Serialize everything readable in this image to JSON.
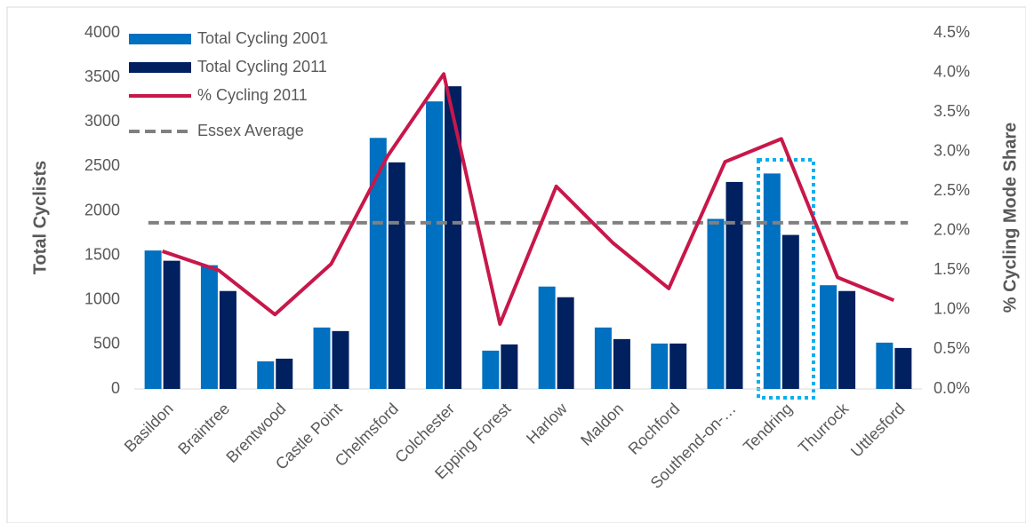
{
  "chart_data": {
    "type": "bar",
    "categories": [
      "Basildon",
      "Braintree",
      "Brentwood",
      "Castle Point",
      "Chelmsford",
      "Colchester",
      "Epping Forest",
      "Harlow",
      "Maldon",
      "Rochford",
      "Southend-on-…",
      "Tendring",
      "Thurrock",
      "Uttlesford"
    ],
    "series": [
      {
        "name": "Total Cycling 2001",
        "type": "bar",
        "color": "#0070c0",
        "values": [
          1555,
          1390,
          310,
          690,
          2820,
          3230,
          430,
          1150,
          690,
          510,
          1910,
          2420,
          1165,
          520
        ]
      },
      {
        "name": "Total Cycling 2011",
        "type": "bar",
        "color": "#002060",
        "values": [
          1440,
          1100,
          340,
          650,
          2545,
          3400,
          500,
          1030,
          560,
          510,
          2325,
          1730,
          1100,
          460
        ]
      },
      {
        "name": "% Cycling 2011",
        "type": "line",
        "axis": "y2",
        "color": "#c8174a",
        "values": [
          1.74,
          1.5,
          0.94,
          1.58,
          2.94,
          3.98,
          0.82,
          2.56,
          1.85,
          1.27,
          2.87,
          3.16,
          1.41,
          1.12
        ]
      }
    ],
    "reference_lines": [
      {
        "name": "Essex Average",
        "axis": "y2",
        "value": 2.1,
        "color": "#808080",
        "dashed": true
      }
    ],
    "ylabel": "Total Cyclists",
    "y2label": "% Cycling Mode Share",
    "ylim": [
      0,
      4000
    ],
    "yticks": [
      0,
      500,
      1000,
      1500,
      2000,
      2500,
      3000,
      3500,
      4000
    ],
    "y2lim": [
      0,
      4.5
    ],
    "y2ticks": [
      {
        "value": 0,
        "label": "0.0%"
      },
      {
        "value": 0.5,
        "label": "0.5%"
      },
      {
        "value": 1,
        "label": "1.0%"
      },
      {
        "value": 1.5,
        "label": "1.5%"
      },
      {
        "value": 2,
        "label": "2.0%"
      },
      {
        "value": 2.5,
        "label": "2.5%"
      },
      {
        "value": 3,
        "label": "3.0%"
      },
      {
        "value": 3.5,
        "label": "3.5%"
      },
      {
        "value": 4,
        "label": "4.0%"
      },
      {
        "value": 4.5,
        "label": "4.5%"
      }
    ],
    "legend": "top-left",
    "grid": false
  }
}
